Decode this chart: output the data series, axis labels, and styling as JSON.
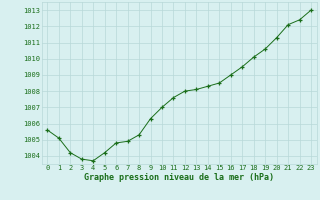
{
  "x": [
    0,
    1,
    2,
    3,
    4,
    5,
    6,
    7,
    8,
    9,
    10,
    11,
    12,
    13,
    14,
    15,
    16,
    17,
    18,
    19,
    20,
    21,
    22,
    23
  ],
  "y": [
    1005.6,
    1005.1,
    1004.2,
    1003.8,
    1003.7,
    1004.2,
    1004.8,
    1004.9,
    1005.3,
    1006.3,
    1007.0,
    1007.6,
    1008.0,
    1008.1,
    1008.3,
    1008.5,
    1009.0,
    1009.5,
    1010.1,
    1010.6,
    1011.3,
    1012.1,
    1012.4,
    1013.0
  ],
  "line_color": "#1a6e1a",
  "marker_color": "#1a6e1a",
  "bg_color": "#d8f0f0",
  "grid_color": "#b8d8d8",
  "xlabel": "Graphe pression niveau de la mer (hPa)",
  "xlabel_color": "#1a6e1a",
  "yticks": [
    1004,
    1005,
    1006,
    1007,
    1008,
    1009,
    1010,
    1011,
    1012,
    1013
  ],
  "xlim": [
    -0.5,
    23.5
  ],
  "ylim": [
    1003.5,
    1013.5
  ],
  "xticks": [
    0,
    1,
    2,
    3,
    4,
    5,
    6,
    7,
    8,
    9,
    10,
    11,
    12,
    13,
    14,
    15,
    16,
    17,
    18,
    19,
    20,
    21,
    22,
    23
  ],
  "tick_fontsize": 5.0,
  "xlabel_fontsize": 6.0
}
